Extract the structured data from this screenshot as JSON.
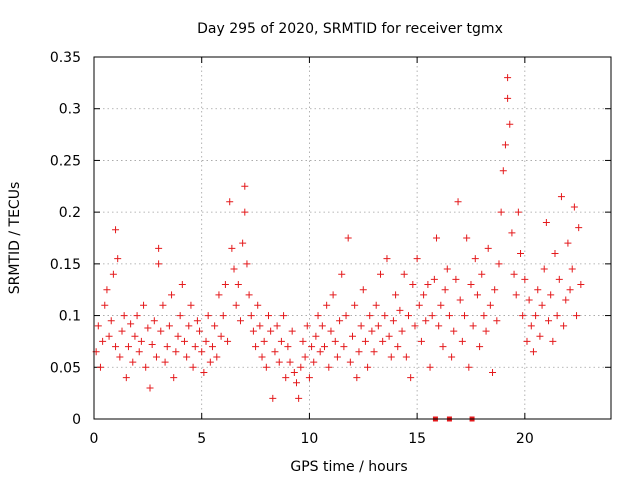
{
  "chart_data": {
    "type": "scatter",
    "title": "Day 295 of 2020, SRMTID for receiver tgmx",
    "xlabel": "GPS time / hours",
    "ylabel": "SRMTID / TECUs",
    "xlim": [
      0,
      24
    ],
    "ylim": [
      0,
      0.35
    ],
    "xticks": [
      0,
      5,
      10,
      15,
      20
    ],
    "xtick_labels": [
      "0",
      "5",
      "10",
      "15",
      "20"
    ],
    "yticks": [
      0,
      0.05,
      0.1,
      0.15,
      0.2,
      0.25,
      0.3,
      0.35
    ],
    "ytick_labels": [
      "0",
      "0.05",
      "0.1",
      "0.15",
      "0.2",
      "0.25",
      "0.3",
      "0.35"
    ],
    "grid": true,
    "marker": "plus",
    "marker_color": "#e41a1c",
    "series": [
      {
        "name": "SRMTID",
        "points": [
          [
            0.1,
            0.065
          ],
          [
            0.2,
            0.09
          ],
          [
            0.3,
            0.05
          ],
          [
            0.4,
            0.075
          ],
          [
            0.5,
            0.11
          ],
          [
            0.6,
            0.125
          ],
          [
            0.7,
            0.08
          ],
          [
            0.8,
            0.095
          ],
          [
            0.9,
            0.14
          ],
          [
            1.0,
            0.07
          ],
          [
            1.0,
            0.183
          ],
          [
            1.1,
            0.155
          ],
          [
            1.2,
            0.06
          ],
          [
            1.3,
            0.085
          ],
          [
            1.4,
            0.1
          ],
          [
            1.5,
            0.04
          ],
          [
            1.6,
            0.07
          ],
          [
            1.7,
            0.092
          ],
          [
            1.8,
            0.055
          ],
          [
            1.9,
            0.08
          ],
          [
            2.0,
            0.1
          ],
          [
            2.1,
            0.065
          ],
          [
            2.2,
            0.075
          ],
          [
            2.3,
            0.11
          ],
          [
            2.4,
            0.05
          ],
          [
            2.5,
            0.088
          ],
          [
            2.6,
            0.03
          ],
          [
            2.7,
            0.072
          ],
          [
            2.8,
            0.095
          ],
          [
            2.9,
            0.06
          ],
          [
            3.0,
            0.165
          ],
          [
            3.0,
            0.15
          ],
          [
            3.1,
            0.085
          ],
          [
            3.2,
            0.11
          ],
          [
            3.3,
            0.055
          ],
          [
            3.4,
            0.07
          ],
          [
            3.5,
            0.09
          ],
          [
            3.6,
            0.12
          ],
          [
            3.7,
            0.04
          ],
          [
            3.8,
            0.065
          ],
          [
            3.9,
            0.08
          ],
          [
            4.0,
            0.1
          ],
          [
            4.1,
            0.13
          ],
          [
            4.2,
            0.075
          ],
          [
            4.3,
            0.06
          ],
          [
            4.4,
            0.09
          ],
          [
            4.5,
            0.11
          ],
          [
            4.6,
            0.05
          ],
          [
            4.7,
            0.07
          ],
          [
            4.8,
            0.095
          ],
          [
            4.9,
            0.085
          ],
          [
            5.0,
            0.065
          ],
          [
            5.1,
            0.045
          ],
          [
            5.2,
            0.075
          ],
          [
            5.3,
            0.1
          ],
          [
            5.4,
            0.055
          ],
          [
            5.5,
            0.07
          ],
          [
            5.6,
            0.09
          ],
          [
            5.7,
            0.06
          ],
          [
            5.8,
            0.12
          ],
          [
            5.9,
            0.08
          ],
          [
            6.0,
            0.1
          ],
          [
            6.1,
            0.13
          ],
          [
            6.2,
            0.075
          ],
          [
            6.3,
            0.21
          ],
          [
            6.4,
            0.165
          ],
          [
            6.5,
            0.145
          ],
          [
            6.6,
            0.11
          ],
          [
            6.7,
            0.13
          ],
          [
            6.8,
            0.095
          ],
          [
            6.9,
            0.17
          ],
          [
            7.0,
            0.225
          ],
          [
            7.0,
            0.2
          ],
          [
            7.1,
            0.15
          ],
          [
            7.2,
            0.12
          ],
          [
            7.3,
            0.1
          ],
          [
            7.4,
            0.085
          ],
          [
            7.5,
            0.07
          ],
          [
            7.6,
            0.11
          ],
          [
            7.7,
            0.09
          ],
          [
            7.8,
            0.06
          ],
          [
            7.9,
            0.075
          ],
          [
            8.0,
            0.05
          ],
          [
            8.1,
            0.1
          ],
          [
            8.2,
            0.085
          ],
          [
            8.3,
            0.02
          ],
          [
            8.4,
            0.065
          ],
          [
            8.5,
            0.09
          ],
          [
            8.6,
            0.055
          ],
          [
            8.7,
            0.075
          ],
          [
            8.8,
            0.1
          ],
          [
            8.9,
            0.04
          ],
          [
            9.0,
            0.07
          ],
          [
            9.1,
            0.055
          ],
          [
            9.2,
            0.085
          ],
          [
            9.3,
            0.045
          ],
          [
            9.4,
            0.035
          ],
          [
            9.5,
            0.02
          ],
          [
            9.6,
            0.05
          ],
          [
            9.7,
            0.075
          ],
          [
            9.8,
            0.06
          ],
          [
            9.9,
            0.09
          ],
          [
            10.0,
            0.04
          ],
          [
            10.1,
            0.07
          ],
          [
            10.2,
            0.055
          ],
          [
            10.3,
            0.08
          ],
          [
            10.4,
            0.1
          ],
          [
            10.5,
            0.065
          ],
          [
            10.6,
            0.09
          ],
          [
            10.7,
            0.07
          ],
          [
            10.8,
            0.11
          ],
          [
            10.9,
            0.05
          ],
          [
            11.0,
            0.085
          ],
          [
            11.1,
            0.12
          ],
          [
            11.2,
            0.075
          ],
          [
            11.3,
            0.06
          ],
          [
            11.4,
            0.095
          ],
          [
            11.5,
            0.14
          ],
          [
            11.6,
            0.07
          ],
          [
            11.7,
            0.1
          ],
          [
            11.8,
            0.175
          ],
          [
            11.9,
            0.055
          ],
          [
            12.0,
            0.08
          ],
          [
            12.1,
            0.11
          ],
          [
            12.2,
            0.04
          ],
          [
            12.3,
            0.065
          ],
          [
            12.4,
            0.09
          ],
          [
            12.5,
            0.125
          ],
          [
            12.6,
            0.075
          ],
          [
            12.7,
            0.05
          ],
          [
            12.8,
            0.1
          ],
          [
            12.9,
            0.085
          ],
          [
            13.0,
            0.065
          ],
          [
            13.1,
            0.11
          ],
          [
            13.2,
            0.09
          ],
          [
            13.3,
            0.14
          ],
          [
            13.4,
            0.075
          ],
          [
            13.5,
            0.1
          ],
          [
            13.6,
            0.155
          ],
          [
            13.7,
            0.08
          ],
          [
            13.8,
            0.06
          ],
          [
            13.9,
            0.095
          ],
          [
            14.0,
            0.12
          ],
          [
            14.1,
            0.07
          ],
          [
            14.2,
            0.105
          ],
          [
            14.3,
            0.085
          ],
          [
            14.4,
            0.14
          ],
          [
            14.5,
            0.06
          ],
          [
            14.6,
            0.1
          ],
          [
            14.7,
            0.04
          ],
          [
            14.8,
            0.13
          ],
          [
            14.9,
            0.09
          ],
          [
            15.0,
            0.155
          ],
          [
            15.1,
            0.11
          ],
          [
            15.2,
            0.075
          ],
          [
            15.3,
            0.12
          ],
          [
            15.4,
            0.095
          ],
          [
            15.5,
            0.13
          ],
          [
            15.6,
            0.05
          ],
          [
            15.7,
            0.1
          ],
          [
            15.8,
            0.135
          ],
          [
            15.9,
            0.175
          ],
          [
            16.0,
            0.09
          ],
          [
            16.1,
            0.11
          ],
          [
            16.2,
            0.07
          ],
          [
            16.3,
            0.125
          ],
          [
            16.4,
            0.145
          ],
          [
            16.5,
            0.1
          ],
          [
            16.6,
            0.06
          ],
          [
            16.7,
            0.085
          ],
          [
            16.8,
            0.135
          ],
          [
            16.9,
            0.21
          ],
          [
            17.0,
            0.115
          ],
          [
            17.1,
            0.075
          ],
          [
            17.2,
            0.1
          ],
          [
            17.3,
            0.175
          ],
          [
            17.4,
            0.05
          ],
          [
            17.5,
            0.13
          ],
          [
            17.6,
            0.09
          ],
          [
            17.7,
            0.155
          ],
          [
            17.8,
            0.12
          ],
          [
            17.9,
            0.07
          ],
          [
            18.0,
            0.14
          ],
          [
            18.1,
            0.1
          ],
          [
            18.2,
            0.085
          ],
          [
            18.3,
            0.165
          ],
          [
            18.4,
            0.11
          ],
          [
            18.5,
            0.045
          ],
          [
            18.6,
            0.125
          ],
          [
            18.7,
            0.095
          ],
          [
            18.8,
            0.15
          ],
          [
            18.9,
            0.2
          ],
          [
            19.0,
            0.24
          ],
          [
            19.1,
            0.265
          ],
          [
            19.2,
            0.33
          ],
          [
            19.2,
            0.31
          ],
          [
            19.3,
            0.285
          ],
          [
            19.4,
            0.18
          ],
          [
            19.5,
            0.14
          ],
          [
            19.6,
            0.12
          ],
          [
            19.7,
            0.2
          ],
          [
            19.8,
            0.16
          ],
          [
            19.9,
            0.1
          ],
          [
            20.0,
            0.135
          ],
          [
            20.1,
            0.075
          ],
          [
            20.2,
            0.115
          ],
          [
            20.3,
            0.09
          ],
          [
            20.4,
            0.065
          ],
          [
            20.5,
            0.1
          ],
          [
            20.6,
            0.125
          ],
          [
            20.7,
            0.08
          ],
          [
            20.8,
            0.11
          ],
          [
            20.9,
            0.145
          ],
          [
            21.0,
            0.19
          ],
          [
            21.1,
            0.095
          ],
          [
            21.2,
            0.12
          ],
          [
            21.3,
            0.075
          ],
          [
            21.4,
            0.16
          ],
          [
            21.5,
            0.1
          ],
          [
            21.6,
            0.135
          ],
          [
            21.7,
            0.215
          ],
          [
            21.8,
            0.09
          ],
          [
            21.9,
            0.115
          ],
          [
            22.0,
            0.17
          ],
          [
            22.1,
            0.125
          ],
          [
            22.2,
            0.145
          ],
          [
            22.3,
            0.205
          ],
          [
            22.4,
            0.1
          ],
          [
            22.5,
            0.185
          ],
          [
            22.6,
            0.13
          ]
        ]
      }
    ],
    "zero_markers_x": [
      15.85,
      16.5,
      17.55
    ]
  }
}
